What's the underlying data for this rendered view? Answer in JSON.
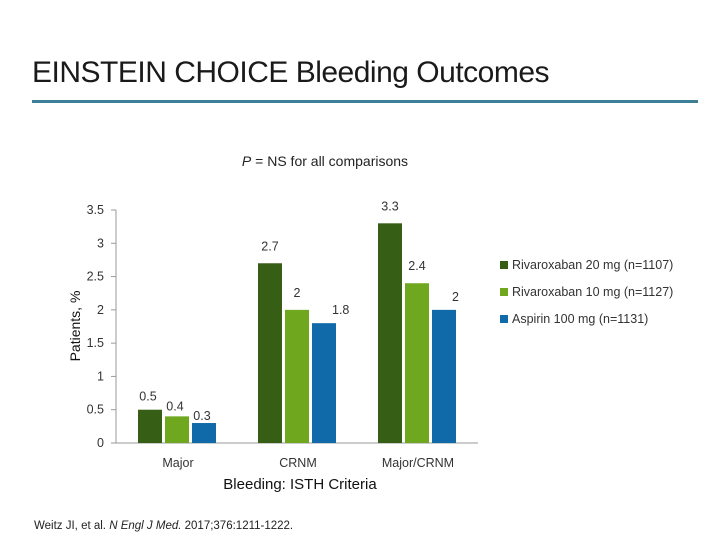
{
  "slide": {
    "title": "EINSTEIN CHOICE Bleeding Outcomes",
    "subtitle_p": "P",
    "subtitle_rest": " = NS for all comparisons",
    "citation_authors": "Weitz JI, et al. ",
    "citation_journal": "N Engl J Med.",
    "citation_rest": " 2017;376:1211-1222."
  },
  "chart_data": {
    "type": "bar",
    "xlabel": "Bleeding: ISTH Criteria",
    "ylabel": "Patients, %",
    "ylim": [
      0,
      3.5
    ],
    "yticks": [
      "0",
      "0.5",
      "1",
      "1.5",
      "2",
      "2.5",
      "3",
      "3.5"
    ],
    "categories": [
      "Major",
      "CRNM",
      "Major/CRNM"
    ],
    "series": [
      {
        "name": "Rivaroxaban 20 mg (n=1107)",
        "color": "#375e15",
        "values": [
          0.5,
          2.7,
          3.3
        ],
        "labels": [
          "0.5",
          "2.7",
          "3.3"
        ]
      },
      {
        "name": "Rivaroxaban 10 mg (n=1127)",
        "color": "#6fa81f",
        "values": [
          0.4,
          2,
          2.4
        ],
        "labels": [
          "0.4",
          "2",
          "2.4"
        ]
      },
      {
        "name": "Aspirin 100 mg (n=1131)",
        "color": "#1069a8",
        "values": [
          0.3,
          1.8,
          2
        ],
        "labels": [
          "0.3",
          "1.8",
          "2"
        ]
      }
    ],
    "grid": false,
    "legend": "right"
  }
}
